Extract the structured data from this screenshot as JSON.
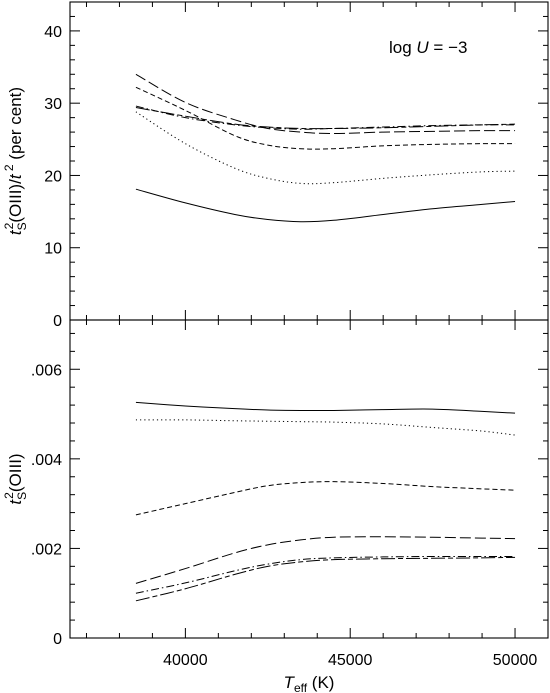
{
  "chart_data": [
    {
      "type": "line",
      "panel": "top",
      "ylabel_parts": [
        "t",
        "S",
        "2",
        "(OIII)/",
        "t",
        " 2",
        " (per cent)"
      ],
      "annotation": {
        "text_parts": [
          "log ",
          "U",
          " = −3"
        ]
      },
      "xlim": [
        36500,
        51000
      ],
      "ylim": [
        0,
        44
      ],
      "yticks": [
        0,
        10,
        20,
        30,
        40
      ],
      "ytick_labels": [
        "0",
        "10",
        "20",
        "30",
        "40"
      ],
      "x": [
        38500,
        40000,
        41500,
        42500,
        43500,
        44500,
        46000,
        47500,
        49000,
        50000
      ],
      "series": [
        {
          "dash": "solid",
          "values": [
            18.1,
            16.2,
            14.6,
            13.9,
            13.6,
            13.8,
            14.6,
            15.4,
            16.0,
            16.4
          ]
        },
        {
          "dash": "dot",
          "values": [
            28.8,
            24.4,
            21.0,
            19.6,
            18.9,
            19.0,
            19.6,
            20.1,
            20.5,
            20.6
          ]
        },
        {
          "dash": "short-dash",
          "values": [
            32.2,
            29.0,
            25.5,
            24.2,
            23.7,
            23.7,
            24.1,
            24.3,
            24.4,
            24.4
          ]
        },
        {
          "dash": "long-dash",
          "values": [
            34.0,
            30.1,
            27.7,
            26.5,
            26.0,
            25.8,
            26.0,
            26.1,
            26.2,
            26.2
          ]
        },
        {
          "dash": "dash-dot",
          "values": [
            29.6,
            28.0,
            27.0,
            26.6,
            26.4,
            26.5,
            26.7,
            26.9,
            27.0,
            27.0
          ]
        },
        {
          "dash": "long-short",
          "values": [
            29.4,
            28.2,
            27.1,
            26.7,
            26.5,
            26.5,
            26.6,
            26.8,
            27.0,
            27.1
          ]
        }
      ]
    },
    {
      "type": "line",
      "panel": "bottom",
      "ylabel_parts": [
        "t",
        "S",
        "2",
        "(OIII)"
      ],
      "xlabel_parts": [
        "T",
        "eff",
        " (K)"
      ],
      "xlim": [
        36500,
        51000
      ],
      "ylim": [
        0,
        0.0071
      ],
      "yticks": [
        0,
        0.002,
        0.004,
        0.006
      ],
      "ytick_labels": [
        "0",
        ".002",
        ".004",
        ".006"
      ],
      "xticks": [
        40000,
        45000,
        50000
      ],
      "xtick_labels": [
        "40000",
        "45000",
        "50000"
      ],
      "x": [
        38500,
        40000,
        41500,
        42500,
        43500,
        44500,
        46000,
        47500,
        49000,
        50000
      ],
      "series": [
        {
          "dash": "solid",
          "values": [
            0.00526,
            0.00518,
            0.00512,
            0.00509,
            0.00508,
            0.00508,
            0.0051,
            0.00511,
            0.00506,
            0.00502
          ]
        },
        {
          "dash": "dot",
          "values": [
            0.00487,
            0.00487,
            0.00485,
            0.00484,
            0.00483,
            0.00482,
            0.00478,
            0.0047,
            0.00462,
            0.00453
          ]
        },
        {
          "dash": "short-dash",
          "values": [
            0.00275,
            0.003,
            0.00325,
            0.0034,
            0.00347,
            0.00349,
            0.00345,
            0.00338,
            0.00333,
            0.0033
          ]
        },
        {
          "dash": "long-dash",
          "values": [
            0.00122,
            0.00155,
            0.0019,
            0.00208,
            0.00219,
            0.00225,
            0.00226,
            0.00225,
            0.00223,
            0.00222
          ]
        },
        {
          "dash": "dash-dot",
          "values": [
            0.001,
            0.00123,
            0.0015,
            0.00165,
            0.00175,
            0.00179,
            0.00181,
            0.00182,
            0.00182,
            0.00182
          ]
        },
        {
          "dash": "long-short",
          "values": [
            0.00083,
            0.0011,
            0.00142,
            0.0016,
            0.0017,
            0.00175,
            0.00177,
            0.00178,
            0.00179,
            0.0018
          ]
        }
      ]
    }
  ]
}
